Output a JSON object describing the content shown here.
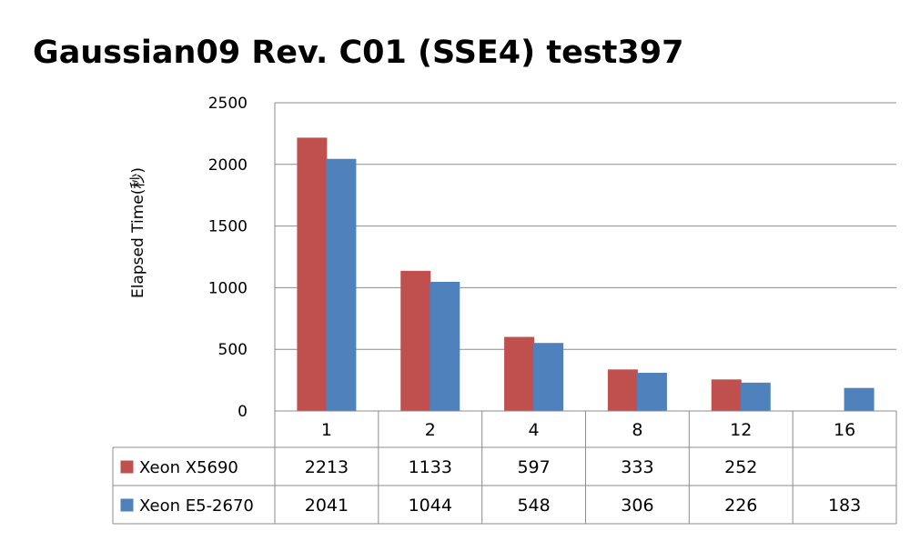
{
  "chart_data": {
    "type": "bar",
    "title": "Gaussian09 Rev. C01 (SSE4) test397",
    "xlabel": "",
    "ylabel": "Elapsed Time(秒)",
    "categories": [
      "1",
      "2",
      "4",
      "8",
      "12",
      "16"
    ],
    "ylim": [
      0,
      2500
    ],
    "yticks": [
      0,
      500,
      1000,
      1500,
      2000,
      2500
    ],
    "grid": true,
    "legend": "data-table",
    "series": [
      {
        "name": "Xeon X5690",
        "color": "#c0504d",
        "values": [
          2213,
          1133,
          597,
          333,
          252,
          null
        ]
      },
      {
        "name": "Xeon E5-2670",
        "color": "#4f81bd",
        "values": [
          2041,
          1044,
          548,
          306,
          226,
          183
        ]
      }
    ]
  }
}
